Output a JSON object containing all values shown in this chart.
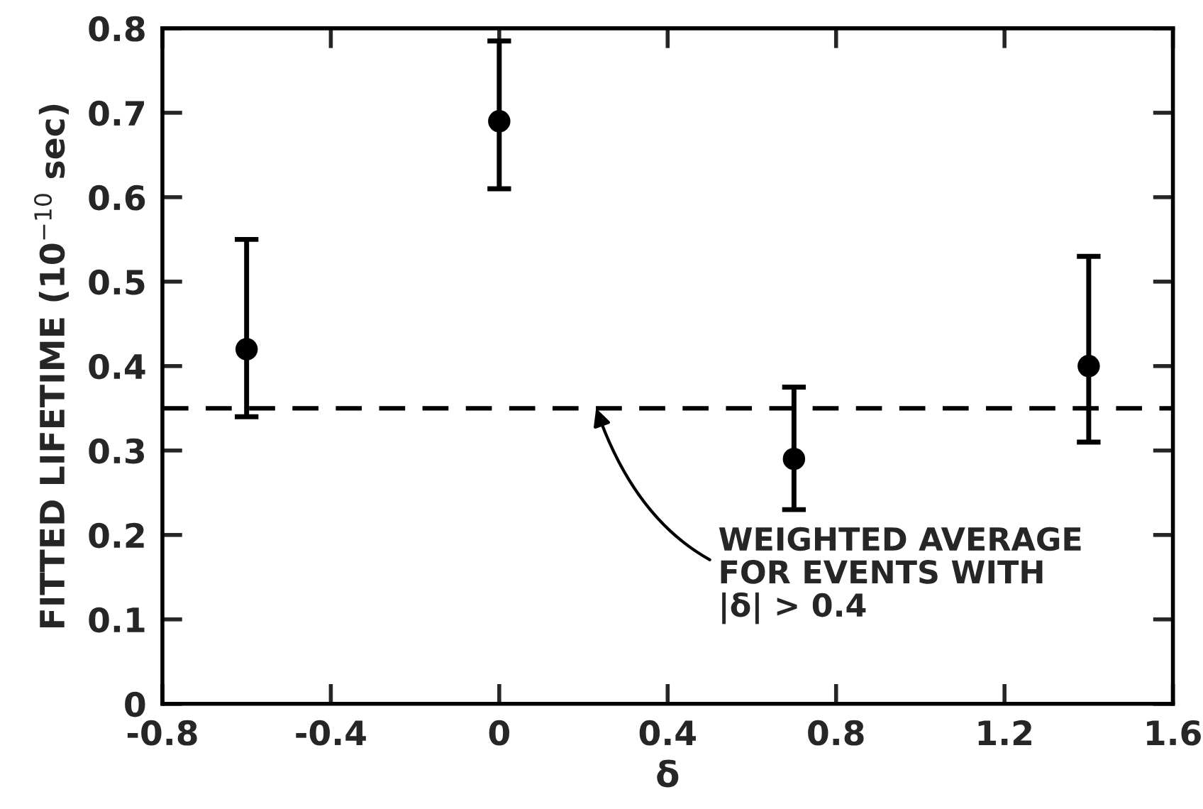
{
  "chart_data": {
    "type": "scatter",
    "xlabel": "δ",
    "ylabel": "FITTED LIFETIME (10$^{−10}$ sec)",
    "x": [
      -0.6,
      0,
      0.7,
      1.4
    ],
    "series": [
      {
        "color": "#000000",
        "values": [
          0.42,
          0.69,
          0.29,
          0.4
        ],
        "errors": [
          [
            0.34,
            0.55
          ],
          [
            0.61,
            0.785
          ],
          [
            0.23,
            0.375
          ],
          [
            0.31,
            0.53
          ]
        ]
      }
    ],
    "marker": "circle",
    "xlim": [
      -0.8,
      1.6
    ],
    "xticks": [
      {
        "value": -0.8,
        "label": "-0.8"
      },
      {
        "value": -0.4,
        "label": "-0.4"
      },
      0,
      0.4,
      0.8,
      1.2,
      1.6
    ],
    "ylim": [
      0,
      0.8
    ],
    "yticks": [
      0,
      0.1,
      0.2,
      0.3,
      0.4,
      0.5,
      0.6,
      0.7,
      0.8
    ],
    "ref_lines": [
      {
        "axis": "y",
        "value": 0.35,
        "color": "#000000",
        "line_style": "dashed"
      }
    ],
    "annotations": [
      {
        "text": "WEIGHTED AVERAGE\nFOR EVENTS WITH\n|δ| > 0.4",
        "x": 0.23,
        "y": 0.35
      }
    ],
    "grid": false,
    "legend": false
  }
}
